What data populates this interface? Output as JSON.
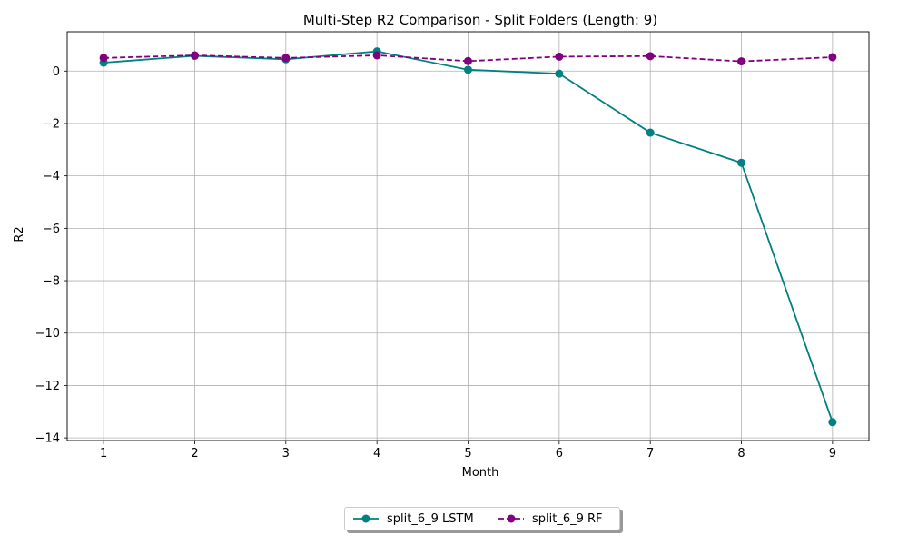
{
  "chart_data": {
    "type": "line",
    "title": "Multi-Step R2 Comparison - Split Folders (Length: 9)",
    "xlabel": "Month",
    "ylabel": "R2",
    "x": [
      1,
      2,
      3,
      4,
      5,
      6,
      7,
      8,
      9
    ],
    "xticks": [
      "1",
      "2",
      "3",
      "4",
      "5",
      "6",
      "7",
      "8",
      "9"
    ],
    "yticks": [
      0,
      -2,
      -4,
      -6,
      -8,
      -10,
      -12,
      -14
    ],
    "ylim": [
      -14.1,
      1.5
    ],
    "xlim": [
      0.6,
      9.4
    ],
    "grid": true,
    "legend_position": "bottom-center",
    "series": [
      {
        "name": "split_6_9 LSTM",
        "color": "#008080",
        "linestyle": "solid",
        "marker": "circle",
        "values": [
          0.32,
          0.58,
          0.45,
          0.75,
          0.05,
          -0.1,
          -2.35,
          -3.5,
          -13.4
        ]
      },
      {
        "name": "split_6_9 RF",
        "color": "#800080",
        "linestyle": "dashed",
        "marker": "circle",
        "values": [
          0.5,
          0.6,
          0.5,
          0.6,
          0.38,
          0.55,
          0.57,
          0.37,
          0.53
        ]
      }
    ]
  }
}
